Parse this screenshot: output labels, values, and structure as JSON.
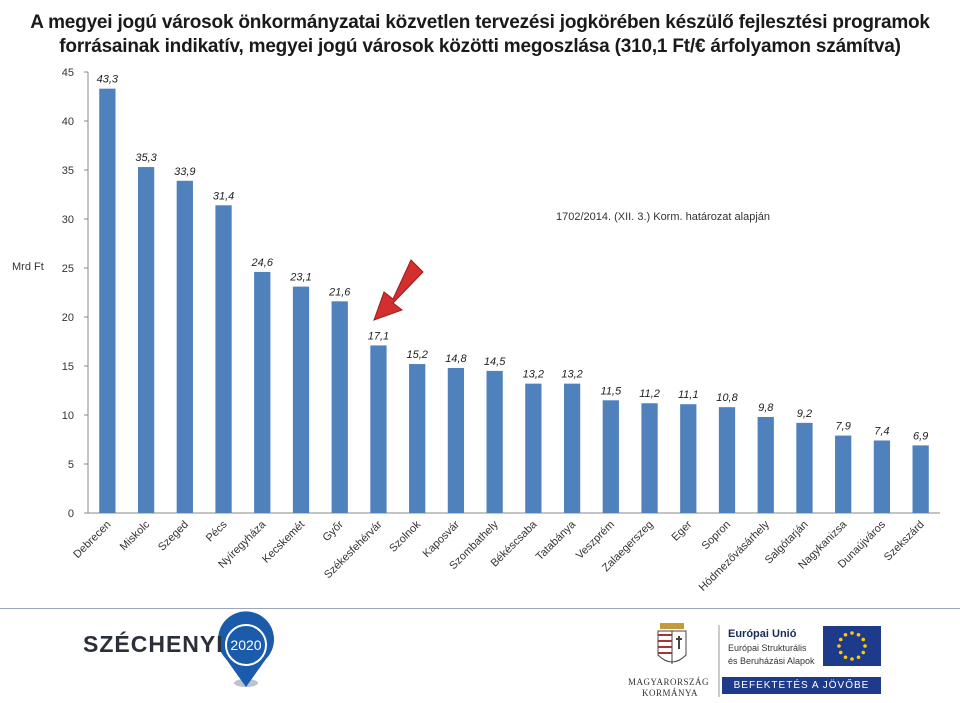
{
  "slide": {
    "title_line1": "A megyei jogú városok önkormányzatai közvetlen tervezési jogkörében készülő fejlesztési programok",
    "title_line2": "forrásainak indikatív, megyei jogú városok közötti megoszlása (310,1 Ft/€ árfolyamon számítva)",
    "annotation": "1702/2014. (XII. 3.) Korm. határozat alapján"
  },
  "chart_data": {
    "type": "bar",
    "ylabel": "Mrd Ft",
    "ylim": [
      0,
      45
    ],
    "yticks": [
      0,
      5,
      10,
      15,
      20,
      25,
      30,
      35,
      40,
      45
    ],
    "grid": false,
    "bar_color": "#4f81bd",
    "highlight_arrow_category": "Székesfehérvár",
    "categories": [
      "Debrecen",
      "Miskolc",
      "Szeged",
      "Pécs",
      "Nyíregyháza",
      "Kecskemét",
      "Győr",
      "Székesfehérvár",
      "Szolnok",
      "Kaposvár",
      "Szombathely",
      "Békéscsaba",
      "Tatabánya",
      "Veszprém",
      "Zalaegerszeg",
      "Eger",
      "Sopron",
      "Hódmezővásárhely",
      "Salgótarján",
      "Nagykanizsa",
      "Dunaújváros",
      "Szekszárd"
    ],
    "values": [
      43.3,
      35.3,
      33.9,
      31.4,
      24.6,
      23.1,
      21.6,
      17.1,
      15.2,
      14.8,
      14.5,
      13.2,
      13.2,
      11.5,
      11.2,
      11.1,
      10.8,
      9.8,
      9.2,
      7.9,
      7.4,
      6.9
    ],
    "value_labels": [
      "43,3",
      "35,3",
      "33,9",
      "31,4",
      "24,6",
      "23,1",
      "21,6",
      "17,1",
      "15,2",
      "14,8",
      "14,5",
      "13,2",
      "13,2",
      "11,5",
      "11,2",
      "11,1",
      "10,8",
      "9,8",
      "9,2",
      "7,9",
      "7,4",
      "6,9"
    ]
  },
  "footer": {
    "szechenyi_text": "SZÉCHENYI",
    "szechenyi_year": "2020",
    "gov_line1": "MAGYARORSZÁG",
    "gov_line2": "KORMÁNYA",
    "eu_title": "Európai Unió",
    "eu_line1": "Európai Strukturális",
    "eu_line2": "és Beruházási Alapok",
    "eu_banner": "BEFEKTETÉS A JÖVŐBE",
    "colors": {
      "szechenyi_blue": "#1b5bab",
      "eu_blue": "#1e3a8a",
      "eu_star": "#ffcc00",
      "arrow_red": "#d32f2f"
    }
  }
}
